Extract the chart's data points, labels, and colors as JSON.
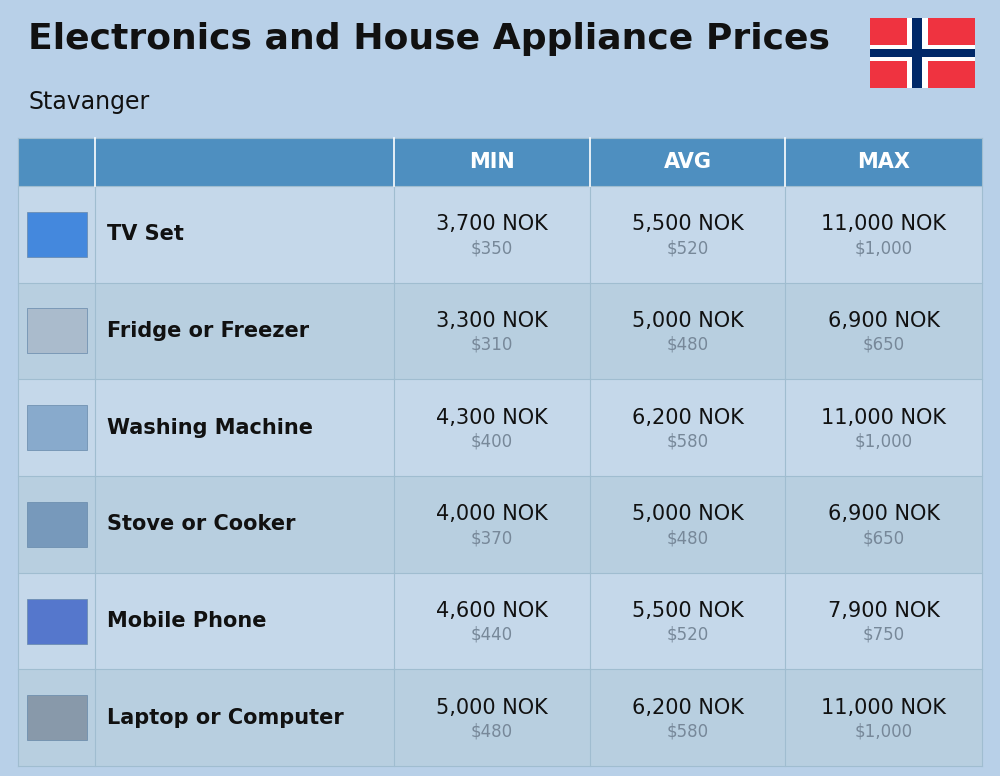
{
  "title": "Electronics and House Appliance Prices",
  "subtitle": "Stavanger",
  "background_color": "#b8d0e8",
  "header_color": "#4e8fc0",
  "header_text_color": "#ffffff",
  "row_colors": [
    "#c5d8ea",
    "#b8cfe0"
  ],
  "separator_color": "#a0bdd0",
  "columns": [
    "MIN",
    "AVG",
    "MAX"
  ],
  "items": [
    {
      "name": "TV Set",
      "min_nok": "3,700 NOK",
      "min_usd": "$350",
      "avg_nok": "5,500 NOK",
      "avg_usd": "$520",
      "max_nok": "11,000 NOK",
      "max_usd": "$1,000"
    },
    {
      "name": "Fridge or Freezer",
      "min_nok": "3,300 NOK",
      "min_usd": "$310",
      "avg_nok": "5,000 NOK",
      "avg_usd": "$480",
      "max_nok": "6,900 NOK",
      "max_usd": "$650"
    },
    {
      "name": "Washing Machine",
      "min_nok": "4,300 NOK",
      "min_usd": "$400",
      "avg_nok": "6,200 NOK",
      "avg_usd": "$580",
      "max_nok": "11,000 NOK",
      "max_usd": "$1,000"
    },
    {
      "name": "Stove or Cooker",
      "min_nok": "4,000 NOK",
      "min_usd": "$370",
      "avg_nok": "5,000 NOK",
      "avg_usd": "$480",
      "max_nok": "6,900 NOK",
      "max_usd": "$650"
    },
    {
      "name": "Mobile Phone",
      "min_nok": "4,600 NOK",
      "min_usd": "$440",
      "avg_nok": "5,500 NOK",
      "avg_usd": "$520",
      "max_nok": "7,900 NOK",
      "max_usd": "$750"
    },
    {
      "name": "Laptop or Computer",
      "min_nok": "5,000 NOK",
      "min_usd": "$480",
      "avg_nok": "6,200 NOK",
      "avg_usd": "$580",
      "max_nok": "11,000 NOK",
      "max_usd": "$1,000"
    }
  ],
  "norway_flag": {
    "red": "#EF3340",
    "blue": "#002868",
    "white": "#FFFFFF"
  },
  "title_fontsize": 26,
  "subtitle_fontsize": 17,
  "header_fontsize": 15,
  "item_name_fontsize": 15,
  "nok_fontsize": 15,
  "usd_fontsize": 12
}
